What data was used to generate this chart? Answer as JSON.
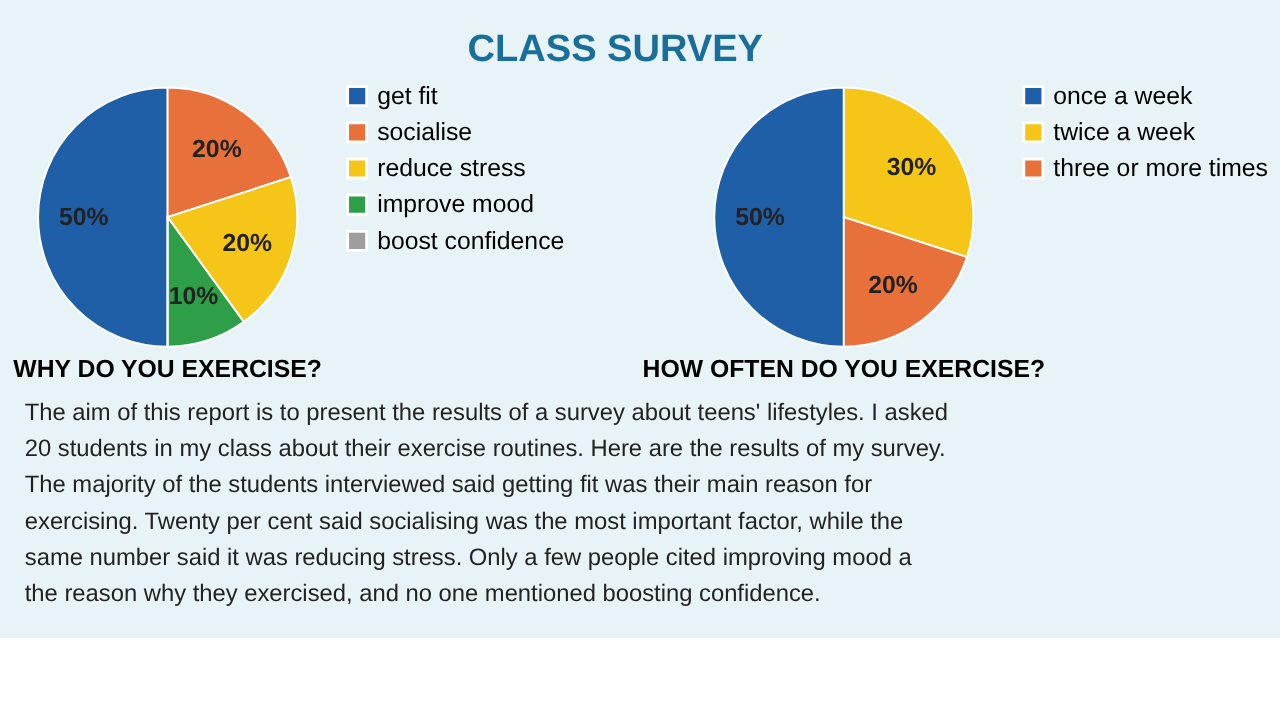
{
  "chart_data": [
    {
      "type": "other",
      "title": "CLASS SURVEY"
    },
    {
      "type": "pie",
      "title": "WHY DO YOU EXERCISE?",
      "legend": "right",
      "categories": [
        "get fit",
        "socialise",
        "reduce stress",
        "improve mood",
        "boost confidence"
      ],
      "values": [
        50,
        20,
        20,
        10,
        0
      ],
      "colors": [
        "#1f5fa8",
        "#e8703a",
        "#f5c518",
        "#2e9e48",
        "#9e9e9e"
      ],
      "value_labels": [
        "50%",
        "20%",
        "20%",
        "10%",
        null
      ]
    },
    {
      "type": "pie",
      "title": "HOW OFTEN DO YOU EXERCISE?",
      "legend": "right",
      "categories": [
        "once a week",
        "twice a week",
        "three or more times"
      ],
      "values": [
        50,
        30,
        20
      ],
      "colors": [
        "#1f5fa8",
        "#f5c518",
        "#e8703a"
      ],
      "value_labels": [
        "50%",
        "30%",
        "20%"
      ]
    },
    {
      "type": "other",
      "annotations": [
        "The aim of this report is to present the results of a survey about teens' lifestyles. I asked",
        "20 students in my class about their exercise routines. Here are the results of my survey.",
        "The majority of the students interviewed said getting fit was their main reason for",
        "exercising. Twenty per cent said socialising was the most important factor, while the",
        "same number said it was reducing stress. Only a few people cited  improving mood a",
        "the reason why they exercised, and no one mentioned boosting confidence."
      ]
    }
  ]
}
